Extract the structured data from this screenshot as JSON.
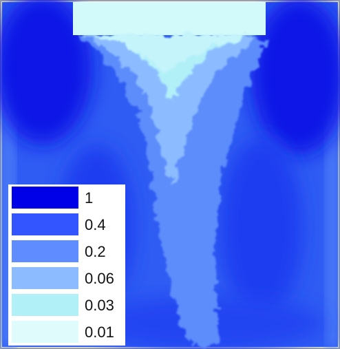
{
  "legend": {
    "entries": [
      {
        "label": "1",
        "color": "#0000e8"
      },
      {
        "label": "0.4",
        "color": "#3355ff"
      },
      {
        "label": "0.2",
        "color": "#5f8cff"
      },
      {
        "label": "0.06",
        "color": "#8cbcff"
      },
      {
        "label": "0.03",
        "color": "#b2f0f8"
      },
      {
        "label": "0.01",
        "color": "#e0fbfb"
      }
    ]
  },
  "colors": {
    "background_field": "#2a55f2",
    "frame": "#9aa0a8",
    "inlet_fill": "#d2fafa",
    "dark_core": "#0a18e6"
  }
}
